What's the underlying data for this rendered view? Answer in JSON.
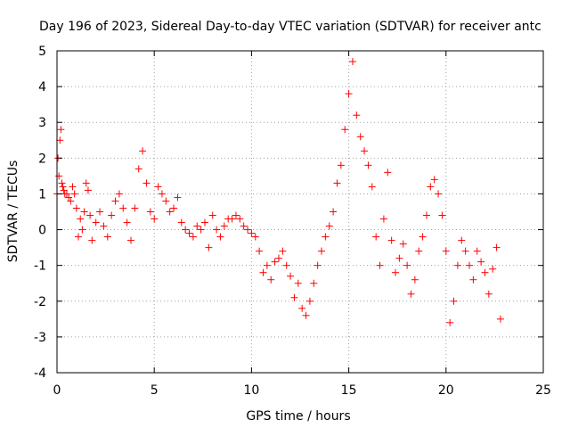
{
  "chart_data": {
    "type": "scatter",
    "title": "Day 196 of 2023, Sidereal Day-to-day VTEC variation (SDTVAR) for receiver antc",
    "xlabel": "GPS time / hours",
    "ylabel": "SDTVAR / TECUs",
    "xlim": [
      0,
      25
    ],
    "ylim": [
      -4,
      5
    ],
    "xticks": [
      0,
      5,
      10,
      15,
      20,
      25
    ],
    "xtick_labels": [
      "0",
      "5",
      "10",
      "15",
      "20",
      "25"
    ],
    "yticks": [
      -4,
      -3,
      -2,
      -1,
      0,
      1,
      2,
      3,
      4,
      5
    ],
    "ytick_labels": [
      "-4",
      "-3",
      "-2",
      "-1",
      "0",
      "1",
      "2",
      "3",
      "4",
      "5"
    ],
    "grid": true,
    "marker": "+",
    "series": [
      {
        "name": "SDTVAR",
        "color": "#ff0000",
        "x": [
          0.0,
          0.05,
          0.1,
          0.15,
          0.2,
          0.25,
          0.3,
          0.35,
          0.4,
          0.5,
          0.6,
          0.7,
          0.8,
          0.9,
          1.0,
          1.1,
          1.2,
          1.3,
          1.4,
          1.5,
          1.6,
          1.7,
          1.8,
          2.0,
          2.2,
          2.4,
          2.6,
          2.8,
          3.0,
          3.2,
          3.4,
          3.6,
          3.8,
          4.0,
          4.2,
          4.4,
          4.6,
          4.8,
          5.0,
          5.2,
          5.4,
          5.6,
          5.8,
          6.0,
          6.2,
          6.4,
          6.6,
          6.8,
          7.0,
          7.2,
          7.4,
          7.6,
          7.8,
          8.0,
          8.2,
          8.4,
          8.6,
          8.8,
          9.0,
          9.2,
          9.4,
          9.6,
          9.8,
          10.0,
          10.2,
          10.4,
          10.6,
          10.8,
          11.0,
          11.2,
          11.4,
          11.6,
          11.8,
          12.0,
          12.2,
          12.4,
          12.6,
          12.8,
          13.0,
          13.2,
          13.4,
          13.6,
          13.8,
          14.0,
          14.2,
          14.4,
          14.6,
          14.8,
          15.0,
          15.2,
          15.4,
          15.6,
          15.8,
          16.0,
          16.2,
          16.4,
          16.6,
          16.8,
          17.0,
          17.2,
          17.4,
          17.6,
          17.8,
          18.0,
          18.2,
          18.4,
          18.6,
          18.8,
          19.0,
          19.2,
          19.4,
          19.6,
          19.8,
          20.0,
          20.2,
          20.4,
          20.6,
          20.8,
          21.0,
          21.2,
          21.4,
          21.6,
          21.8,
          22.0,
          22.2,
          22.4,
          22.6,
          22.8
        ],
        "y": [
          1.0,
          2.0,
          1.5,
          2.5,
          2.8,
          1.3,
          1.2,
          1.1,
          1.0,
          1.0,
          0.9,
          0.8,
          1.2,
          1.0,
          0.6,
          -0.2,
          0.3,
          0.0,
          0.5,
          1.3,
          1.1,
          0.4,
          -0.3,
          0.2,
          0.5,
          0.1,
          -0.2,
          0.4,
          0.8,
          1.0,
          0.6,
          0.2,
          -0.3,
          0.6,
          1.7,
          2.2,
          1.3,
          0.5,
          0.3,
          1.2,
          1.0,
          0.8,
          0.5,
          0.6,
          0.9,
          0.2,
          0.0,
          -0.1,
          -0.2,
          0.1,
          0.0,
          0.2,
          -0.5,
          0.4,
          0.0,
          -0.2,
          0.1,
          0.3,
          0.3,
          0.4,
          0.3,
          0.1,
          0.0,
          -0.1,
          -0.2,
          -0.6,
          -1.2,
          -1.0,
          -1.4,
          -0.9,
          -0.8,
          -0.6,
          -1.0,
          -1.3,
          -1.9,
          -1.5,
          -2.2,
          -2.4,
          -2.0,
          -1.5,
          -1.0,
          -0.6,
          -0.2,
          0.1,
          0.5,
          1.3,
          1.8,
          2.8,
          3.8,
          4.7,
          3.2,
          2.6,
          2.2,
          1.8,
          1.2,
          -0.2,
          -1.0,
          0.3,
          1.6,
          -0.3,
          -1.2,
          -0.8,
          -0.4,
          -1.0,
          -1.8,
          -1.4,
          -0.6,
          -0.2,
          0.4,
          1.2,
          1.4,
          1.0,
          0.4,
          -0.6,
          -2.6,
          -2.0,
          -1.0,
          -0.3,
          -0.6,
          -1.0,
          -1.4,
          -0.6,
          -0.9,
          -1.2,
          -1.8,
          -1.1,
          -0.5,
          -2.5
        ]
      }
    ]
  }
}
